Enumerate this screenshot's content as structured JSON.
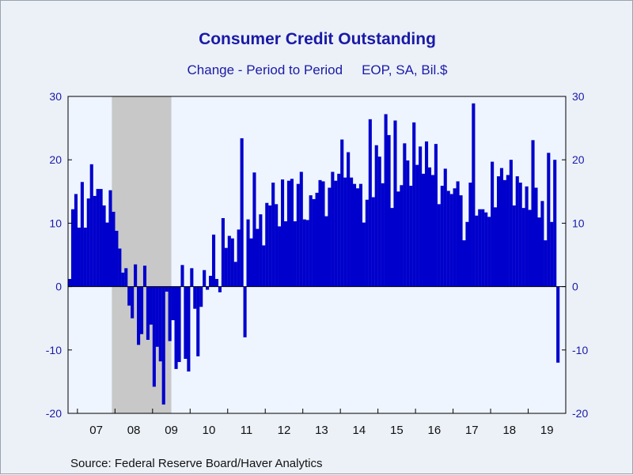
{
  "chart_data": {
    "type": "bar",
    "title": "Consumer Credit Outstanding",
    "subtitle_left": "Change - Period to Period",
    "subtitle_right": "EOP, SA, Bil.$",
    "source": "Source:  Federal Reserve Board/Haver Analytics",
    "ylim": [
      -20,
      30
    ],
    "yticks": [
      -20,
      -10,
      0,
      10,
      20,
      30
    ],
    "ytick_labels": [
      "-20",
      "-10",
      "0",
      "10",
      "20",
      "30"
    ],
    "xlim": [
      "2006-10",
      "2019-12"
    ],
    "xtick_labels": [
      "07",
      "08",
      "09",
      "10",
      "11",
      "12",
      "13",
      "14",
      "15",
      "16",
      "17",
      "18",
      "19"
    ],
    "recession_shading": {
      "start": "2007-12",
      "end": "2009-06"
    },
    "bar_color": "#0000cc",
    "plot_background": "#eef5ff",
    "recession_color": "#c8c8c8",
    "series": [
      {
        "start": "2006-10",
        "frequency": "monthly",
        "values": [
          1.2,
          12.2,
          14.6,
          9.3,
          16.5,
          9.3,
          13.9,
          19.3,
          14.3,
          15.4,
          15.4,
          12.8,
          10.1,
          15.2,
          11.8,
          8.8,
          6.0,
          2.2,
          2.9,
          -3.0,
          -5.0,
          3.5,
          -9.2,
          -7.5,
          3.3,
          -8.4,
          -6.0,
          -15.8,
          -9.5,
          -11.8,
          -18.6,
          -0.8,
          -8.6,
          -5.3,
          -13.0,
          -11.9,
          3.4,
          -11.4,
          -13.4,
          2.9,
          -3.5,
          -11.0,
          -3.2,
          2.6,
          -0.5,
          1.7,
          8.2,
          1.2,
          -0.9,
          10.8,
          6.1,
          8.0,
          7.6,
          3.9,
          9.0,
          23.4,
          -8.0,
          10.6,
          7.6,
          18.0,
          9.1,
          11.4,
          6.5,
          13.2,
          12.8,
          16.4,
          13.0,
          9.5,
          16.9,
          10.3,
          16.7,
          17.0,
          10.3,
          16.2,
          18.1,
          10.6,
          10.5,
          14.4,
          13.8,
          14.8,
          16.8,
          16.6,
          11.1,
          15.6,
          18.1,
          16.7,
          17.8,
          23.2,
          17.2,
          21.2,
          17.2,
          16.2,
          15.5,
          16.2,
          10.1,
          13.7,
          26.4,
          14.1,
          22.3,
          20.5,
          16.3,
          27.2,
          23.9,
          12.4,
          26.2,
          15.0,
          16.0,
          22.6,
          19.9,
          15.9,
          25.9,
          19.2,
          22.1,
          17.8,
          22.9,
          18.8,
          17.6,
          22.5,
          13.0,
          15.9,
          18.6,
          15.1,
          14.6,
          15.5,
          16.6,
          14.4,
          7.3,
          10.2,
          16.4,
          28.9,
          11.2,
          12.2,
          12.2,
          11.7,
          11.0,
          19.7,
          12.5,
          17.4,
          18.7,
          16.8,
          17.6,
          20.0,
          12.8,
          17.4,
          16.4,
          12.4,
          15.8,
          12.1,
          23.1,
          15.6,
          10.9,
          13.5,
          7.3,
          21.1,
          10.2,
          20.0,
          -12.0
        ]
      }
    ]
  }
}
